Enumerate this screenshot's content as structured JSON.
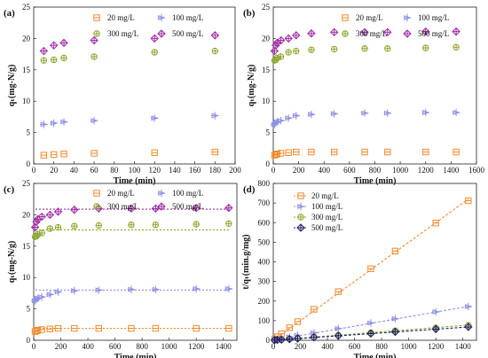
{
  "colors": {
    "s20": "#f28a2c",
    "s100": "#8f8fe6",
    "s300": "#8aa62c",
    "s500": "#a22aa6",
    "s500d": "#1c1c6a"
  },
  "chart_data": [
    {
      "panel_label": "(a)",
      "type": "scatter",
      "xlabel": "Time (min)",
      "ylabel": "qₜ(mg-N/g)",
      "xlim": [
        0,
        200
      ],
      "ylim": [
        0,
        25
      ],
      "xticks": [
        "0",
        "20",
        "40",
        "60",
        "80",
        "100",
        "120",
        "140",
        "160",
        "180",
        "200"
      ],
      "yticks": [
        "0",
        "5",
        "10",
        "15",
        "20",
        "25"
      ],
      "legend_position": "top",
      "series": [
        {
          "name": "20  mg/L",
          "color": "s20",
          "marker": "square",
          "points": [
            [
              10,
              1.4
            ],
            [
              20,
              1.5
            ],
            [
              30,
              1.6
            ],
            [
              60,
              1.7
            ],
            [
              120,
              1.8
            ],
            [
              180,
              1.9
            ]
          ]
        },
        {
          "name": "100 mg/L",
          "color": "s100",
          "marker": "cross",
          "points": [
            [
              10,
              6.3
            ],
            [
              20,
              6.5
            ],
            [
              30,
              6.7
            ],
            [
              60,
              6.9
            ],
            [
              120,
              7.3
            ],
            [
              180,
              7.7
            ]
          ]
        },
        {
          "name": "300 mg/L",
          "color": "s300",
          "marker": "circle",
          "points": [
            [
              10,
              16.5
            ],
            [
              20,
              16.6
            ],
            [
              30,
              16.9
            ],
            [
              60,
              17.1
            ],
            [
              120,
              17.8
            ],
            [
              180,
              18.0
            ]
          ]
        },
        {
          "name": "500 mg/L",
          "color": "s500",
          "marker": "diamond",
          "points": [
            [
              10,
              18.0
            ],
            [
              20,
              18.9
            ],
            [
              30,
              19.3
            ],
            [
              60,
              19.7
            ],
            [
              120,
              20.0
            ],
            [
              180,
              20.5
            ]
          ]
        }
      ]
    },
    {
      "panel_label": "(b)",
      "type": "scatter",
      "xlabel": "Time (min)",
      "ylabel": "qₜ(mg-N/g)",
      "xlim": [
        0,
        1600
      ],
      "ylim": [
        0,
        25
      ],
      "xticks": [
        "0",
        "200",
        "400",
        "600",
        "800",
        "1000",
        "1200",
        "1400",
        "1600"
      ],
      "yticks": [
        "0",
        "5",
        "10",
        "15",
        "20",
        "25"
      ],
      "legend_position": "top",
      "series": [
        {
          "name": "20  mg/L",
          "color": "s20",
          "marker": "square",
          "points": [
            [
              10,
              1.4
            ],
            [
              20,
              1.5
            ],
            [
              30,
              1.6
            ],
            [
              60,
              1.7
            ],
            [
              120,
              1.8
            ],
            [
              180,
              1.9
            ],
            [
              300,
              1.9
            ],
            [
              480,
              1.9
            ],
            [
              720,
              1.9
            ],
            [
              900,
              1.9
            ],
            [
              1200,
              1.9
            ],
            [
              1440,
              1.9
            ]
          ]
        },
        {
          "name": "100 mg/L",
          "color": "s100",
          "marker": "cross",
          "points": [
            [
              10,
              6.3
            ],
            [
              20,
              6.5
            ],
            [
              30,
              6.7
            ],
            [
              60,
              6.9
            ],
            [
              120,
              7.3
            ],
            [
              180,
              7.7
            ],
            [
              300,
              7.9
            ],
            [
              480,
              8.0
            ],
            [
              720,
              8.1
            ],
            [
              900,
              8.1
            ],
            [
              1200,
              8.2
            ],
            [
              1440,
              8.2
            ]
          ]
        },
        {
          "name": "300 mg/L",
          "color": "s300",
          "marker": "circle",
          "points": [
            [
              10,
              16.5
            ],
            [
              20,
              16.6
            ],
            [
              30,
              16.9
            ],
            [
              60,
              17.1
            ],
            [
              120,
              17.8
            ],
            [
              180,
              18.0
            ],
            [
              300,
              18.2
            ],
            [
              480,
              18.3
            ],
            [
              720,
              18.4
            ],
            [
              900,
              18.4
            ],
            [
              1200,
              18.5
            ],
            [
              1440,
              18.6
            ]
          ]
        },
        {
          "name": "500 mg/L",
          "color": "s500",
          "marker": "diamond",
          "points": [
            [
              10,
              18.0
            ],
            [
              20,
              18.9
            ],
            [
              30,
              19.3
            ],
            [
              60,
              19.7
            ],
            [
              120,
              20.0
            ],
            [
              180,
              20.5
            ],
            [
              300,
              20.8
            ],
            [
              480,
              21.0
            ],
            [
              720,
              21.0
            ],
            [
              900,
              21.0
            ],
            [
              1200,
              21.1
            ],
            [
              1440,
              21.1
            ]
          ]
        }
      ]
    },
    {
      "panel_label": "(c)",
      "type": "scatter",
      "xlabel": "Time (min)",
      "ylabel": "qₜ(mg-N/g)",
      "xlim": [
        0,
        1500
      ],
      "ylim": [
        0,
        25
      ],
      "xticks": [
        "0",
        "200",
        "400",
        "600",
        "800",
        "1000",
        "1200",
        "1400"
      ],
      "yticks": [
        "0",
        "5",
        "10",
        "15",
        "20",
        "25"
      ],
      "legend_position": "top",
      "series": [
        {
          "name": "20  mg/L",
          "color": "s20",
          "marker": "square",
          "fit_y": 1.9,
          "points": [
            [
              10,
              1.4
            ],
            [
              20,
              1.5
            ],
            [
              30,
              1.6
            ],
            [
              60,
              1.7
            ],
            [
              120,
              1.8
            ],
            [
              180,
              1.9
            ],
            [
              300,
              1.9
            ],
            [
              480,
              1.9
            ],
            [
              720,
              1.9
            ],
            [
              900,
              1.9
            ],
            [
              1200,
              1.9
            ],
            [
              1440,
              1.9
            ]
          ]
        },
        {
          "name": "100 mg/L",
          "color": "s100",
          "marker": "cross",
          "fit_y": 8.0,
          "points": [
            [
              10,
              6.3
            ],
            [
              20,
              6.5
            ],
            [
              30,
              6.7
            ],
            [
              60,
              6.9
            ],
            [
              120,
              7.3
            ],
            [
              180,
              7.7
            ],
            [
              300,
              7.9
            ],
            [
              480,
              8.0
            ],
            [
              720,
              8.1
            ],
            [
              900,
              8.1
            ],
            [
              1200,
              8.2
            ],
            [
              1440,
              8.2
            ]
          ]
        },
        {
          "name": "300 mg/L",
          "color": "s300",
          "marker": "circle",
          "fit_y": 17.6,
          "points": [
            [
              10,
              16.5
            ],
            [
              20,
              16.6
            ],
            [
              30,
              16.9
            ],
            [
              60,
              17.1
            ],
            [
              120,
              17.8
            ],
            [
              180,
              18.0
            ],
            [
              300,
              18.2
            ],
            [
              480,
              18.3
            ],
            [
              720,
              18.4
            ],
            [
              900,
              18.4
            ],
            [
              1200,
              18.5
            ],
            [
              1440,
              18.6
            ]
          ]
        },
        {
          "name": "500 mg/L",
          "color": "s500",
          "marker": "diamond",
          "fit_y": 20.9,
          "points": [
            [
              10,
              18.0
            ],
            [
              20,
              18.9
            ],
            [
              30,
              19.3
            ],
            [
              60,
              19.7
            ],
            [
              120,
              20.0
            ],
            [
              180,
              20.5
            ],
            [
              300,
              20.8
            ],
            [
              480,
              21.0
            ],
            [
              720,
              21.0
            ],
            [
              900,
              21.0
            ],
            [
              1200,
              21.1
            ],
            [
              1440,
              21.1
            ]
          ]
        }
      ]
    },
    {
      "panel_label": "(d)",
      "type": "scatter",
      "xlabel": "Time (min)",
      "ylabel": "t/qₜ(min.g/mg)",
      "xlim": [
        0,
        1500
      ],
      "ylim": [
        0,
        800
      ],
      "xticks": [
        "0",
        "200",
        "400",
        "600",
        "800",
        "1000",
        "1200",
        "1400"
      ],
      "yticks": [
        "0",
        "100",
        "200",
        "300",
        "400",
        "500",
        "600",
        "700",
        "800"
      ],
      "legend_position": "top-left",
      "series": [
        {
          "name": "20  mg/L",
          "color": "s20",
          "marker": "square",
          "fit_slope": 0.5,
          "fit_intercept": 0,
          "points": [
            [
              10,
              7
            ],
            [
              30,
              18
            ],
            [
              60,
              33
            ],
            [
              120,
              64
            ],
            [
              180,
              95
            ],
            [
              300,
              158
            ],
            [
              480,
              248
            ],
            [
              720,
              365
            ],
            [
              900,
              455
            ],
            [
              1200,
              598
            ],
            [
              1440,
              712
            ]
          ]
        },
        {
          "name": "100 mg/L",
          "color": "s100",
          "marker": "cross",
          "fit_slope": 0.12,
          "fit_intercept": 0,
          "points": [
            [
              10,
              2
            ],
            [
              30,
              4
            ],
            [
              60,
              9
            ],
            [
              120,
              17
            ],
            [
              180,
              25
            ],
            [
              300,
              38
            ],
            [
              480,
              60
            ],
            [
              720,
              88
            ],
            [
              900,
              110
            ],
            [
              1200,
              145
            ],
            [
              1440,
              172
            ]
          ]
        },
        {
          "name": "300 mg/L",
          "color": "s300",
          "marker": "circle",
          "fit_slope": 0.054,
          "fit_intercept": 0,
          "points": [
            [
              10,
              1
            ],
            [
              30,
              2
            ],
            [
              60,
              4
            ],
            [
              120,
              7
            ],
            [
              180,
              10
            ],
            [
              300,
              17
            ],
            [
              480,
              26
            ],
            [
              720,
              39
            ],
            [
              900,
              49
            ],
            [
              1200,
              64
            ],
            [
              1440,
              77
            ]
          ]
        },
        {
          "name": "500 mg/L",
          "color": "s500d",
          "marker": "diamondcross",
          "fit_slope": 0.047,
          "fit_intercept": 0,
          "points": [
            [
              10,
              1
            ],
            [
              30,
              2
            ],
            [
              60,
              3
            ],
            [
              120,
              6
            ],
            [
              180,
              9
            ],
            [
              300,
              15
            ],
            [
              480,
              23
            ],
            [
              720,
              34
            ],
            [
              900,
              43
            ],
            [
              1200,
              57
            ],
            [
              1440,
              68
            ]
          ]
        }
      ]
    }
  ]
}
